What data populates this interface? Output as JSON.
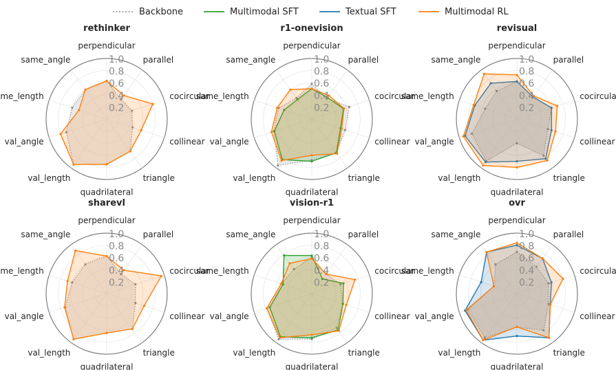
{
  "legend": [
    {
      "label": "Backbone",
      "color": "#8c8c8c",
      "style": "dotted"
    },
    {
      "label": "Multimodal SFT",
      "color": "#2ca02c",
      "style": "solid"
    },
    {
      "label": "Textual SFT",
      "color": "#1f77b4",
      "style": "solid"
    },
    {
      "label": "Multimodal RL",
      "color": "#ff7f0e",
      "style": "solid"
    }
  ],
  "chart_data": [
    {
      "type": "radar",
      "title": "rethinker",
      "axes": [
        "perpendicular",
        "parallel",
        "cocircular",
        "collinear",
        "triangle",
        "quadrilateral",
        "val_length",
        "val_angle",
        "same_length",
        "same_angle"
      ],
      "rticks": [
        "0.2",
        "0.4",
        "0.6",
        "0.8",
        "1.0"
      ],
      "rlim": [
        0,
        1.0
      ],
      "series": [
        {
          "name": "Backbone",
          "values": [
            0.63,
            0.4,
            0.44,
            0.45,
            0.66,
            0.75,
            0.93,
            0.7,
            0.6,
            0.6
          ]
        },
        {
          "name": "Multimodal RL",
          "values": [
            0.63,
            0.48,
            0.8,
            0.6,
            0.66,
            0.75,
            0.93,
            0.8,
            0.48,
            0.6
          ]
        }
      ]
    },
    {
      "type": "radar",
      "title": "r1-onevision",
      "axes": [
        "perpendicular",
        "parallel",
        "cocircular",
        "collinear",
        "triangle",
        "quadrilateral",
        "val_length",
        "val_angle",
        "same_length",
        "same_angle"
      ],
      "rticks": [
        "0.2",
        "0.4",
        "0.6",
        "0.8",
        "1.0"
      ],
      "rlim": [
        0,
        1.0
      ],
      "series": [
        {
          "name": "Backbone",
          "values": [
            0.58,
            0.42,
            0.65,
            0.58,
            0.69,
            0.68,
            0.95,
            0.66,
            0.58,
            0.43
          ]
        },
        {
          "name": "Multimodal SFT",
          "values": [
            0.5,
            0.44,
            0.55,
            0.5,
            0.69,
            0.7,
            0.83,
            0.65,
            0.48,
            0.4
          ]
        },
        {
          "name": "Multimodal RL",
          "values": [
            0.5,
            0.48,
            0.56,
            0.52,
            0.71,
            0.6,
            0.85,
            0.7,
            0.6,
            0.6
          ]
        }
      ]
    },
    {
      "type": "radar",
      "title": "revisual",
      "axes": [
        "perpendicular",
        "parallel",
        "cocircular",
        "collinear",
        "triangle",
        "quadrilateral",
        "val_length",
        "val_angle",
        "same_length",
        "same_angle"
      ],
      "rticks": [
        "0.2",
        "0.4",
        "0.6",
        "0.8",
        "1.0"
      ],
      "rlim": [
        0,
        1.0
      ],
      "series": [
        {
          "name": "Backbone",
          "values": [
            0.62,
            0.45,
            0.6,
            0.54,
            0.75,
            0.4,
            0.86,
            0.78,
            0.55,
            0.57
          ]
        },
        {
          "name": "Textual SFT",
          "values": [
            0.62,
            0.45,
            0.6,
            0.6,
            0.81,
            0.7,
            0.88,
            0.9,
            0.73,
            0.73
          ]
        },
        {
          "name": "Multimodal RL",
          "values": [
            0.73,
            0.47,
            0.7,
            0.67,
            0.85,
            0.8,
            0.95,
            0.93,
            0.75,
            0.92
          ]
        }
      ]
    },
    {
      "type": "radar",
      "title": "sharevl",
      "axes": [
        "perpendicular",
        "parallel",
        "cocircular",
        "collinear",
        "triangle",
        "quadrilateral",
        "val_length",
        "val_angle",
        "same_length",
        "same_angle"
      ],
      "rticks": [
        "0.2",
        "0.4",
        "0.6",
        "0.8",
        "1.0"
      ],
      "rlim": [
        0,
        1.0
      ],
      "series": [
        {
          "name": "Backbone",
          "values": [
            0.62,
            0.4,
            0.5,
            0.5,
            0.72,
            0.65,
            0.93,
            0.72,
            0.6,
            0.6
          ]
        },
        {
          "name": "Multimodal RL",
          "values": [
            0.62,
            0.48,
            0.95,
            0.65,
            0.72,
            0.65,
            0.93,
            0.73,
            0.68,
            0.88
          ]
        }
      ]
    },
    {
      "type": "radar",
      "title": "vision-r1",
      "axes": [
        "perpendicular",
        "parallel",
        "cocircular",
        "collinear",
        "triangle",
        "quadrilateral",
        "val_length",
        "val_angle",
        "same_length",
        "same_angle"
      ],
      "rticks": [
        "0.2",
        "0.4",
        "0.6",
        "0.8",
        "1.0"
      ],
      "rlim": [
        0,
        1.0
      ],
      "series": [
        {
          "name": "Backbone",
          "values": [
            0.6,
            0.4,
            0.5,
            0.54,
            0.7,
            0.75,
            0.93,
            0.78,
            0.53,
            0.5
          ]
        },
        {
          "name": "Multimodal SFT",
          "values": [
            0.63,
            0.3,
            0.55,
            0.54,
            0.74,
            0.73,
            0.88,
            0.73,
            0.5,
            0.78
          ]
        },
        {
          "name": "Multimodal RL",
          "values": [
            0.58,
            0.4,
            0.75,
            0.6,
            0.76,
            0.68,
            0.9,
            0.78,
            0.53,
            0.62
          ]
        }
      ]
    },
    {
      "type": "radar",
      "title": "ovr",
      "axes": [
        "perpendicular",
        "parallel",
        "cocircular",
        "collinear",
        "triangle",
        "quadrilateral",
        "val_length",
        "val_angle",
        "same_length",
        "same_angle"
      ],
      "rticks": [
        "0.2",
        "0.4",
        "0.6",
        "0.8",
        "1.0"
      ],
      "rlim": [
        0,
        1.0
      ],
      "series": [
        {
          "name": "Backbone",
          "values": [
            0.69,
            0.55,
            0.55,
            0.55,
            0.75,
            0.55,
            0.9,
            0.85,
            0.4,
            0.6
          ]
        },
        {
          "name": "Textual SFT",
          "values": [
            0.8,
            0.72,
            0.6,
            0.58,
            0.9,
            0.7,
            0.95,
            0.9,
            0.62,
            0.85
          ]
        },
        {
          "name": "Multimodal RL",
          "values": [
            0.84,
            0.72,
            0.8,
            0.58,
            0.9,
            0.55,
            0.95,
            0.88,
            0.4,
            0.85
          ]
        }
      ]
    }
  ]
}
